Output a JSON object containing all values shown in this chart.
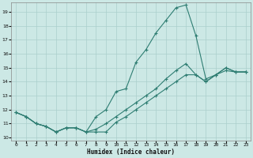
{
  "title": "",
  "xlabel": "Humidex (Indice chaleur)",
  "ylabel": "",
  "background_color": "#cce8e5",
  "grid_color": "#aacfcc",
  "line_color": "#2e7d72",
  "xlim": [
    -0.5,
    23.5
  ],
  "ylim": [
    9.8,
    19.7
  ],
  "yticks": [
    10,
    11,
    12,
    13,
    14,
    15,
    16,
    17,
    18,
    19
  ],
  "xticks": [
    0,
    1,
    2,
    3,
    4,
    5,
    6,
    7,
    8,
    9,
    10,
    11,
    12,
    13,
    14,
    15,
    16,
    17,
    18,
    19,
    20,
    21,
    22,
    23
  ],
  "series": [
    {
      "x": [
        0,
        1,
        2,
        3,
        4,
        5,
        6,
        7,
        8,
        9,
        10,
        11,
        12,
        13,
        14,
        15,
        16,
        17,
        18,
        19,
        20,
        21,
        22,
        23
      ],
      "y": [
        11.8,
        11.5,
        11.0,
        10.8,
        10.4,
        10.7,
        10.7,
        10.4,
        10.4,
        10.4,
        11.1,
        11.5,
        12.0,
        12.5,
        13.0,
        13.5,
        14.0,
        14.5,
        14.5,
        14.0,
        14.5,
        14.8,
        14.7,
        14.7
      ]
    },
    {
      "x": [
        0,
        1,
        2,
        3,
        4,
        5,
        6,
        7,
        8,
        9,
        10,
        11,
        12,
        13,
        14,
        15,
        16,
        17,
        18,
        19,
        20,
        21,
        22,
        23
      ],
      "y": [
        11.8,
        11.5,
        11.0,
        10.8,
        10.4,
        10.7,
        10.7,
        10.4,
        10.6,
        11.0,
        11.5,
        12.0,
        12.5,
        13.0,
        13.5,
        14.2,
        14.8,
        15.3,
        14.5,
        14.0,
        14.5,
        15.0,
        14.7,
        14.7
      ]
    },
    {
      "x": [
        0,
        1,
        2,
        3,
        4,
        5,
        6,
        7,
        8,
        9,
        10,
        11,
        12,
        13,
        14,
        15,
        16,
        17,
        18,
        19,
        20,
        21,
        22,
        23
      ],
      "y": [
        11.8,
        11.5,
        11.0,
        10.8,
        10.4,
        10.7,
        10.7,
        10.4,
        11.5,
        12.0,
        13.3,
        13.5,
        15.4,
        16.3,
        17.5,
        18.4,
        19.3,
        19.5,
        17.3,
        14.2,
        14.5,
        15.0,
        14.7,
        14.7
      ]
    }
  ]
}
